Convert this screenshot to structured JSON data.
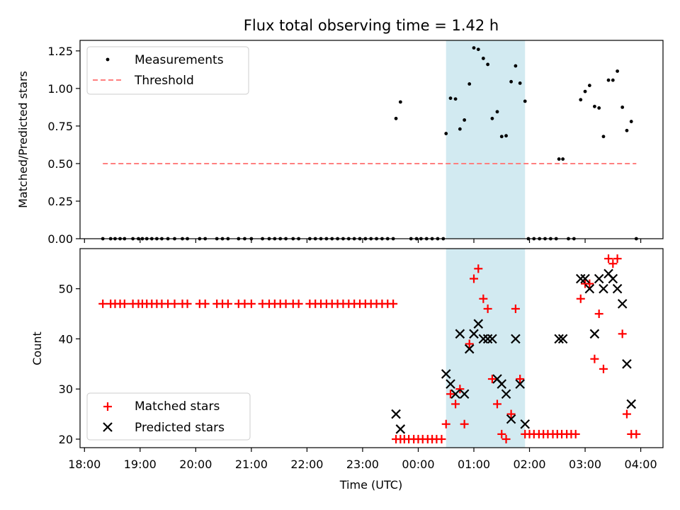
{
  "colors": {
    "measurement": "#000000",
    "threshold": "#ff7f7f",
    "shade": "#add8e6",
    "matched": "#ff0000",
    "predicted": "#000000"
  },
  "chart_data": [
    {
      "type": "scatter",
      "title": "Flux total observing time = 1.42 h",
      "xlabel": "",
      "ylabel": "Matched/Predicted stars",
      "x_unit": "hours since 18:00 UTC",
      "xlim": [
        -0.08,
        10.4
      ],
      "ylim": [
        0,
        1.32
      ],
      "yticks": [
        0,
        0.25,
        0.5,
        0.75,
        1.0,
        1.25
      ],
      "ytick_labels": [
        "0.00",
        "0.25",
        "0.50",
        "0.75",
        "1.00",
        "1.25"
      ],
      "shaded_span": [
        6.5,
        7.92
      ],
      "legend": {
        "position": "upper-left",
        "entries": [
          "Measurements",
          "Threshold"
        ]
      },
      "threshold": {
        "name": "Threshold",
        "value": 0.5,
        "x_start": 0.33,
        "x_end": 9.92
      },
      "series": [
        {
          "name": "Measurements",
          "points": [
            [
              0.33,
              0
            ],
            [
              0.47,
              0
            ],
            [
              0.55,
              0
            ],
            [
              0.64,
              0
            ],
            [
              0.72,
              0
            ],
            [
              0.87,
              0
            ],
            [
              0.97,
              0
            ],
            [
              1.04,
              0
            ],
            [
              1.12,
              0
            ],
            [
              1.21,
              0
            ],
            [
              1.3,
              0
            ],
            [
              1.39,
              0
            ],
            [
              1.5,
              0
            ],
            [
              1.62,
              0
            ],
            [
              1.76,
              0
            ],
            [
              1.85,
              0
            ],
            [
              2.07,
              0
            ],
            [
              2.17,
              0
            ],
            [
              2.38,
              0
            ],
            [
              2.48,
              0
            ],
            [
              2.58,
              0
            ],
            [
              2.77,
              0
            ],
            [
              2.88,
              0
            ],
            [
              3.0,
              0
            ],
            [
              3.2,
              0
            ],
            [
              3.32,
              0
            ],
            [
              3.42,
              0
            ],
            [
              3.52,
              0
            ],
            [
              3.62,
              0
            ],
            [
              3.75,
              0
            ],
            [
              3.85,
              0
            ],
            [
              4.05,
              0
            ],
            [
              4.15,
              0
            ],
            [
              4.25,
              0
            ],
            [
              4.35,
              0
            ],
            [
              4.45,
              0
            ],
            [
              4.55,
              0
            ],
            [
              4.65,
              0
            ],
            [
              4.75,
              0
            ],
            [
              4.85,
              0
            ],
            [
              4.95,
              0
            ],
            [
              5.05,
              0
            ],
            [
              5.15,
              0
            ],
            [
              5.25,
              0
            ],
            [
              5.35,
              0
            ],
            [
              5.45,
              0
            ],
            [
              5.55,
              0
            ],
            [
              5.6,
              0.8
            ],
            [
              5.68,
              0.91
            ],
            [
              5.87,
              0
            ],
            [
              5.97,
              0
            ],
            [
              6.05,
              0
            ],
            [
              6.15,
              0
            ],
            [
              6.25,
              0
            ],
            [
              6.35,
              0
            ],
            [
              6.45,
              0
            ],
            [
              6.5,
              0.7
            ],
            [
              6.58,
              0.935
            ],
            [
              6.67,
              0.93
            ],
            [
              6.75,
              0.73
            ],
            [
              6.83,
              0.79
            ],
            [
              6.92,
              1.03
            ],
            [
              7.0,
              1.27
            ],
            [
              7.08,
              1.26
            ],
            [
              7.17,
              1.2
            ],
            [
              7.25,
              1.16
            ],
            [
              7.33,
              0.8
            ],
            [
              7.42,
              0.845
            ],
            [
              7.5,
              0.68
            ],
            [
              7.58,
              0.685
            ],
            [
              7.67,
              1.045
            ],
            [
              7.75,
              1.15
            ],
            [
              7.83,
              1.035
            ],
            [
              7.92,
              0.915
            ],
            [
              7.98,
              0
            ],
            [
              8.08,
              0
            ],
            [
              8.18,
              0
            ],
            [
              8.28,
              0
            ],
            [
              8.38,
              0
            ],
            [
              8.48,
              0
            ],
            [
              8.53,
              0.53
            ],
            [
              8.6,
              0.53
            ],
            [
              8.7,
              0
            ],
            [
              8.8,
              0
            ],
            [
              8.92,
              0.925
            ],
            [
              9.0,
              0.98
            ],
            [
              9.08,
              1.02
            ],
            [
              9.17,
              0.88
            ],
            [
              9.25,
              0.87
            ],
            [
              9.33,
              0.68
            ],
            [
              9.42,
              1.055
            ],
            [
              9.5,
              1.055
            ],
            [
              9.58,
              1.115
            ],
            [
              9.67,
              0.875
            ],
            [
              9.75,
              0.72
            ],
            [
              9.83,
              0.78
            ],
            [
              9.92,
              0
            ]
          ]
        }
      ]
    },
    {
      "type": "scatter",
      "title": "",
      "xlabel": "Time (UTC)",
      "ylabel": "Count",
      "x_unit": "hours since 18:00 UTC",
      "xlim": [
        -0.08,
        10.4
      ],
      "ylim": [
        18.3,
        58
      ],
      "yticks": [
        20,
        30,
        40,
        50
      ],
      "ytick_labels": [
        "20",
        "30",
        "40",
        "50"
      ],
      "xticks": [
        0,
        1,
        2,
        3,
        4,
        5,
        6,
        7,
        8,
        9,
        10
      ],
      "xtick_labels": [
        "18:00",
        "19:00",
        "20:00",
        "21:00",
        "22:00",
        "23:00",
        "00:00",
        "01:00",
        "02:00",
        "03:00",
        "04:00"
      ],
      "shaded_span": [
        6.5,
        7.92
      ],
      "legend": {
        "position": "lower-left",
        "entries": [
          "Matched stars",
          "Predicted stars"
        ]
      },
      "series": [
        {
          "name": "Matched stars",
          "marker": "plus",
          "points": [
            [
              0.33,
              47
            ],
            [
              0.47,
              47
            ],
            [
              0.55,
              47
            ],
            [
              0.64,
              47
            ],
            [
              0.72,
              47
            ],
            [
              0.87,
              47
            ],
            [
              0.97,
              47
            ],
            [
              1.04,
              47
            ],
            [
              1.12,
              47
            ],
            [
              1.21,
              47
            ],
            [
              1.3,
              47
            ],
            [
              1.39,
              47
            ],
            [
              1.5,
              47
            ],
            [
              1.62,
              47
            ],
            [
              1.76,
              47
            ],
            [
              1.85,
              47
            ],
            [
              2.07,
              47
            ],
            [
              2.17,
              47
            ],
            [
              2.38,
              47
            ],
            [
              2.48,
              47
            ],
            [
              2.58,
              47
            ],
            [
              2.77,
              47
            ],
            [
              2.88,
              47
            ],
            [
              3.0,
              47
            ],
            [
              3.2,
              47
            ],
            [
              3.32,
              47
            ],
            [
              3.42,
              47
            ],
            [
              3.52,
              47
            ],
            [
              3.62,
              47
            ],
            [
              3.75,
              47
            ],
            [
              3.85,
              47
            ],
            [
              4.05,
              47
            ],
            [
              4.15,
              47
            ],
            [
              4.25,
              47
            ],
            [
              4.35,
              47
            ],
            [
              4.45,
              47
            ],
            [
              4.55,
              47
            ],
            [
              4.65,
              47
            ],
            [
              4.75,
              47
            ],
            [
              4.85,
              47
            ],
            [
              4.95,
              47
            ],
            [
              5.05,
              47
            ],
            [
              5.15,
              47
            ],
            [
              5.25,
              47
            ],
            [
              5.35,
              47
            ],
            [
              5.45,
              47
            ],
            [
              5.55,
              47
            ],
            [
              5.6,
              20
            ],
            [
              5.68,
              20
            ],
            [
              5.75,
              20
            ],
            [
              5.83,
              20
            ],
            [
              5.92,
              20
            ],
            [
              6.0,
              20
            ],
            [
              6.08,
              20
            ],
            [
              6.17,
              20
            ],
            [
              6.25,
              20
            ],
            [
              6.33,
              20
            ],
            [
              6.42,
              20
            ],
            [
              6.5,
              23
            ],
            [
              6.58,
              29
            ],
            [
              6.67,
              27
            ],
            [
              6.75,
              30
            ],
            [
              6.83,
              23
            ],
            [
              6.92,
              39
            ],
            [
              7.0,
              52
            ],
            [
              7.08,
              54
            ],
            [
              7.17,
              48
            ],
            [
              7.25,
              46
            ],
            [
              7.33,
              32
            ],
            [
              7.42,
              27
            ],
            [
              7.5,
              21
            ],
            [
              7.58,
              20
            ],
            [
              7.67,
              25
            ],
            [
              7.75,
              46
            ],
            [
              7.83,
              32
            ],
            [
              7.92,
              21
            ],
            [
              8.0,
              21
            ],
            [
              8.08,
              21
            ],
            [
              8.17,
              21
            ],
            [
              8.25,
              21
            ],
            [
              8.33,
              21
            ],
            [
              8.42,
              21
            ],
            [
              8.5,
              21
            ],
            [
              8.58,
              21
            ],
            [
              8.67,
              21
            ],
            [
              8.75,
              21
            ],
            [
              8.83,
              21
            ],
            [
              8.92,
              48
            ],
            [
              9.0,
              51
            ],
            [
              9.08,
              51
            ],
            [
              9.17,
              36
            ],
            [
              9.25,
              45
            ],
            [
              9.33,
              34
            ],
            [
              9.42,
              56
            ],
            [
              9.5,
              55
            ],
            [
              9.58,
              56
            ],
            [
              9.67,
              41
            ],
            [
              9.75,
              25
            ],
            [
              9.83,
              21
            ],
            [
              9.92,
              21
            ]
          ]
        },
        {
          "name": "Predicted stars",
          "marker": "x",
          "points": [
            [
              5.6,
              25
            ],
            [
              5.68,
              22
            ],
            [
              6.5,
              33
            ],
            [
              6.58,
              31
            ],
            [
              6.67,
              29
            ],
            [
              6.75,
              41
            ],
            [
              6.83,
              29
            ],
            [
              6.92,
              38
            ],
            [
              7.0,
              41
            ],
            [
              7.08,
              43
            ],
            [
              7.17,
              40
            ],
            [
              7.25,
              40
            ],
            [
              7.33,
              40
            ],
            [
              7.42,
              32
            ],
            [
              7.5,
              31
            ],
            [
              7.58,
              29
            ],
            [
              7.67,
              24
            ],
            [
              7.75,
              40
            ],
            [
              7.83,
              31
            ],
            [
              7.92,
              23
            ],
            [
              8.53,
              40
            ],
            [
              8.6,
              40
            ],
            [
              8.92,
              52
            ],
            [
              9.0,
              52
            ],
            [
              9.08,
              50
            ],
            [
              9.17,
              41
            ],
            [
              9.25,
              52
            ],
            [
              9.33,
              50
            ],
            [
              9.42,
              53
            ],
            [
              9.5,
              52
            ],
            [
              9.58,
              50
            ],
            [
              9.67,
              47
            ],
            [
              9.75,
              35
            ],
            [
              9.83,
              27
            ]
          ]
        }
      ]
    }
  ]
}
